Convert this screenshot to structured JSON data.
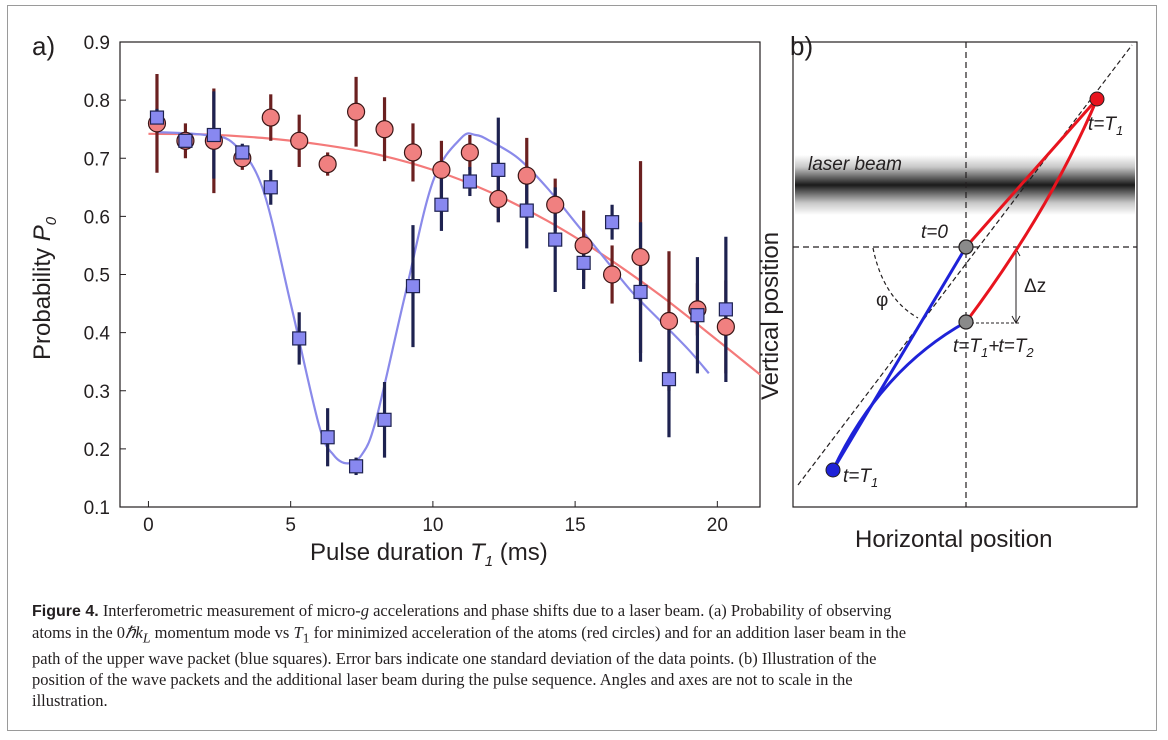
{
  "panel_a": {
    "label": "a)",
    "xlabel_main": "Pulse duration ",
    "xlabel_var": "T",
    "xlabel_sub": "1",
    "xlabel_unit": " (ms)",
    "ylabel_main": "Probability ",
    "ylabel_var": "P",
    "ylabel_sub": "0"
  },
  "panel_b": {
    "label": "b)",
    "xlabel": "Horizontal position",
    "ylabel": "Vertical position",
    "laser_label": "laser beam",
    "t0_label": "t=0",
    "tT1_label_top": "t=T",
    "tT1_label_bottom": "t=T",
    "tT1T2_label": "t=T",
    "t_sub1": "1",
    "t_sub2": "2",
    "plus": "+",
    "dz_label": "Δz",
    "phi_label": "φ"
  },
  "colors": {
    "red_marker": "#f08080",
    "red_fit": "#f47a7a",
    "red_errbar": "#6b2020",
    "blue_marker": "#8888f0",
    "blue_fit": "#8a8aea",
    "blue_errbar": "#1e2250",
    "path_red": "#e8141e",
    "path_blue": "#1e22d8"
  },
  "chart_data": {
    "type": "scatter",
    "xlim": [
      -1,
      21.5
    ],
    "ylim": [
      0.1,
      0.9
    ],
    "xticks": [
      0,
      5,
      10,
      15,
      20
    ],
    "yticks": [
      0.1,
      0.2,
      0.3,
      0.4,
      0.5,
      0.6,
      0.7,
      0.8,
      0.9
    ],
    "series": [
      {
        "marker": "circle",
        "x": [
          0.3,
          1.3,
          2.3,
          3.3,
          4.3,
          5.3,
          6.3,
          7.3,
          8.3,
          9.3,
          10.3,
          11.3,
          12.3,
          13.3,
          14.3,
          15.3,
          16.3,
          17.3,
          18.3,
          19.3,
          20.3
        ],
        "y": [
          0.76,
          0.73,
          0.73,
          0.7,
          0.77,
          0.73,
          0.69,
          0.78,
          0.75,
          0.71,
          0.68,
          0.71,
          0.63,
          0.67,
          0.62,
          0.55,
          0.5,
          0.53,
          0.42,
          0.44,
          0.41
        ],
        "err": [
          0.085,
          0.03,
          0.09,
          0.02,
          0.04,
          0.045,
          0.02,
          0.06,
          0.055,
          0.05,
          0.05,
          0.03,
          0.04,
          0.065,
          0.045,
          0.06,
          0.05,
          0.165,
          0.12,
          0.045,
          0.08
        ]
      },
      {
        "marker": "square",
        "x": [
          0.3,
          1.3,
          2.3,
          3.3,
          4.3,
          5.3,
          6.3,
          7.3,
          8.3,
          9.3,
          10.3,
          11.3,
          12.3,
          13.3,
          14.3,
          15.3,
          16.3,
          17.3,
          18.3,
          19.3,
          20.3
        ],
        "y": [
          0.77,
          0.73,
          0.74,
          0.71,
          0.65,
          0.39,
          0.22,
          0.17,
          0.25,
          0.48,
          0.62,
          0.66,
          0.68,
          0.61,
          0.56,
          0.52,
          0.59,
          0.47,
          0.32,
          0.43,
          0.44
        ],
        "err": [
          0.015,
          0.015,
          0.075,
          0.015,
          0.03,
          0.045,
          0.05,
          0.015,
          0.065,
          0.105,
          0.045,
          0.025,
          0.09,
          0.065,
          0.09,
          0.045,
          0.03,
          0.12,
          0.1,
          0.1,
          0.125
        ]
      }
    ],
    "fits": [
      {
        "x": [
          0,
          2,
          4,
          6,
          8,
          10,
          12,
          14,
          16,
          18,
          20,
          21.5
        ],
        "y": [
          0.742,
          0.741,
          0.735,
          0.724,
          0.707,
          0.68,
          0.642,
          0.593,
          0.533,
          0.464,
          0.387,
          0.328
        ]
      },
      {
        "x": [
          0.3,
          2,
          3,
          4,
          5,
          6,
          6.5,
          7,
          7.5,
          8,
          9,
          10,
          11,
          11.5,
          12,
          13,
          14,
          15,
          16,
          17,
          18,
          19,
          19.7
        ],
        "y": [
          0.745,
          0.74,
          0.725,
          0.65,
          0.45,
          0.24,
          0.19,
          0.175,
          0.19,
          0.25,
          0.46,
          0.66,
          0.735,
          0.74,
          0.73,
          0.7,
          0.65,
          0.59,
          0.53,
          0.47,
          0.42,
          0.37,
          0.33
        ]
      }
    ]
  },
  "caption": {
    "fig_label": "Figure 4.",
    "line1": " Interferometric measurement of micro-",
    "g": "g",
    "line1b": " accelerations and phase shifts due to a laser beam. (a) Probability of observing",
    "line2a": "atoms in the 0",
    "hbar": "ℏ",
    "k": "k",
    "L": "L",
    "line2b": " momentum mode vs ",
    "T": "T",
    "one": "1",
    "line2c": " for minimized acceleration of the atoms (red circles) and for an addition laser beam in the",
    "line3": "path of the upper wave packet (blue squares). Error bars indicate one standard deviation of the data points. (b) Illustration of the",
    "line4": "position of the wave packets and the additional laser beam during the pulse sequence. Angles and axes are not to scale in the",
    "line5": "illustration."
  }
}
